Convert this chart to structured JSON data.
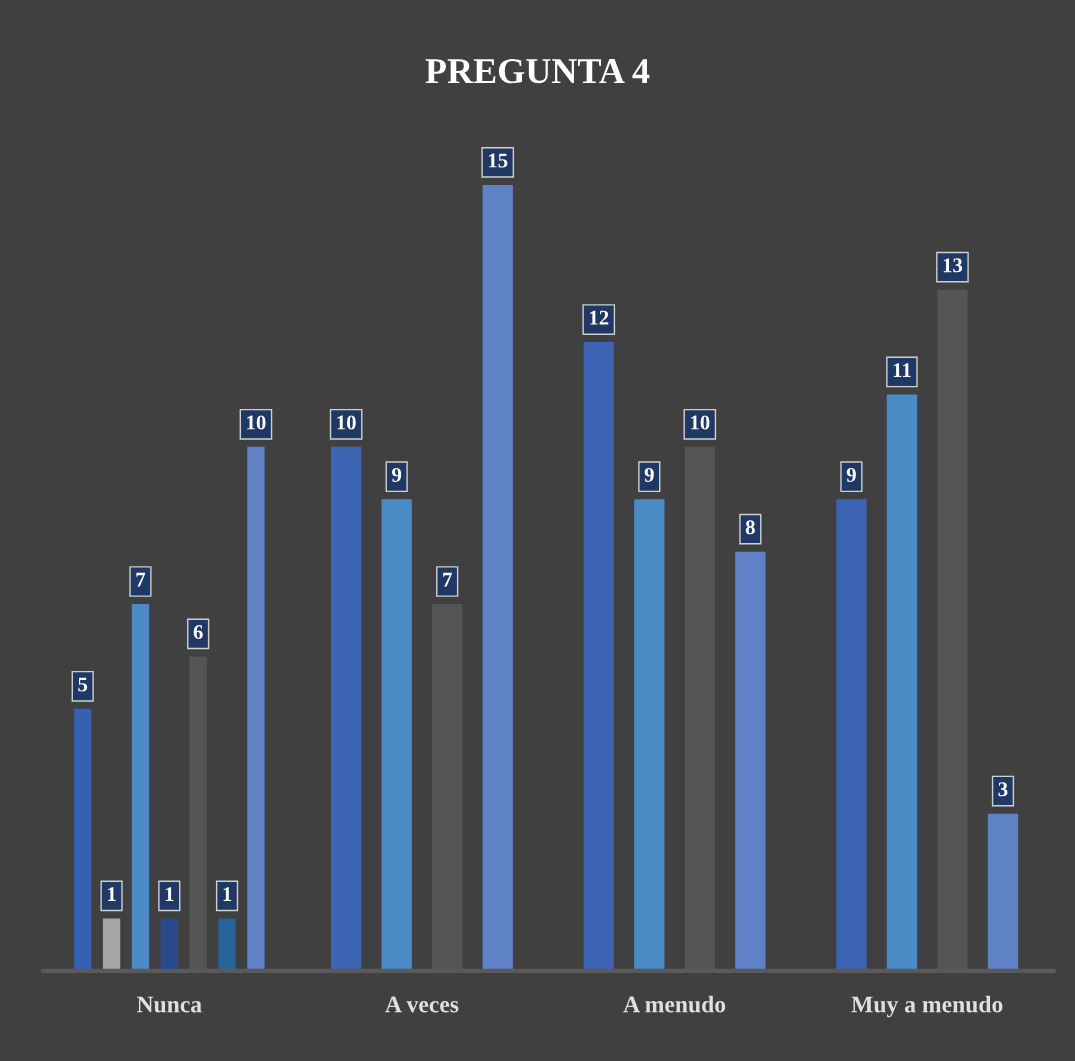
{
  "chart_data": {
    "type": "bar",
    "title": "PREGUNTA 4",
    "data_labels": true,
    "categories": [
      "Nunca",
      "A veces",
      "A menudo",
      "Muy a menudo"
    ],
    "tick_labels": "x",
    "series": [
      {
        "values": [
          5,
          10,
          12,
          9
        ],
        "colors": [
          "#3561b0",
          "#3d64b3",
          "#3d64b3",
          "#3d64b3"
        ]
      },
      {
        "values": [
          1,
          9,
          9,
          11
        ],
        "colors": [
          "#a5a5a5",
          "#4a8bc6",
          "#4a8bc6",
          "#4a8bc6"
        ]
      },
      {
        "values": [
          7,
          7,
          10,
          13
        ],
        "colors": [
          "#4a8bc6",
          "#555555",
          "#555555",
          "#555555"
        ]
      },
      {
        "values": [
          1,
          15,
          8,
          3
        ],
        "colors": [
          "#264a8c",
          "#5f82c6",
          "#5f82c6",
          "#5f82c6"
        ]
      },
      {
        "values": [
          6,
          null,
          null,
          null
        ],
        "colors": [
          "#555555",
          null,
          null,
          null
        ]
      },
      {
        "values": [
          1,
          null,
          null,
          null
        ],
        "colors": [
          "#26649a",
          null,
          null,
          null
        ]
      },
      {
        "values": [
          10,
          null,
          null,
          null
        ],
        "colors": [
          "#5f82c6",
          null,
          null,
          null
        ]
      }
    ]
  }
}
